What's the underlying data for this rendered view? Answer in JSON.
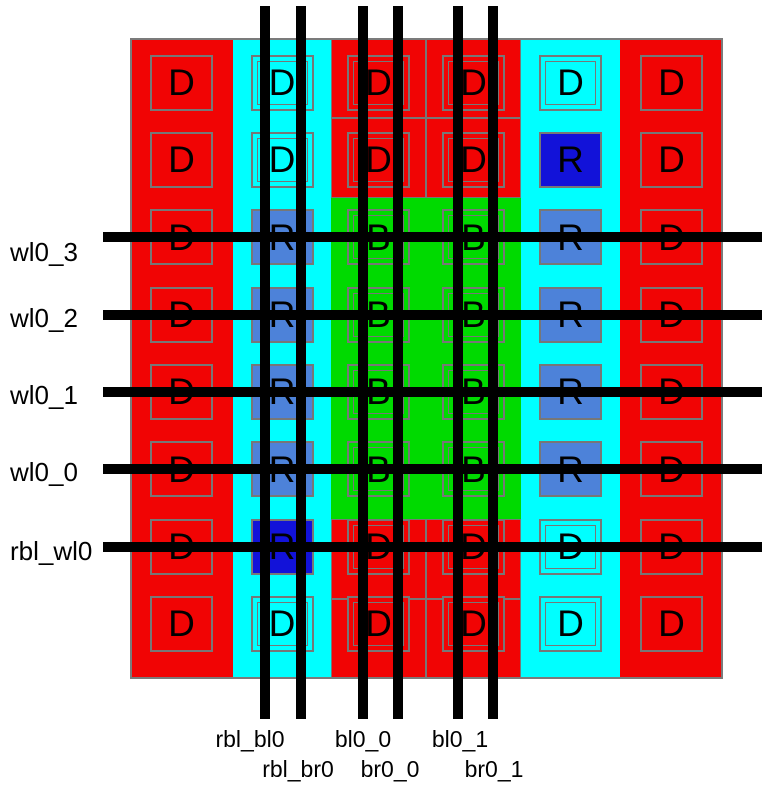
{
  "diagram": {
    "kind": "memory-array-layout",
    "grid": {
      "columns": 6,
      "rows": 8
    },
    "cell_letters": [
      [
        "D",
        "D",
        "D",
        "D",
        "D",
        "D"
      ],
      [
        "D",
        "D",
        "D",
        "D",
        "R",
        "D"
      ],
      [
        "D",
        "R",
        "B",
        "B",
        "R",
        "D"
      ],
      [
        "D",
        "R",
        "B",
        "B",
        "R",
        "D"
      ],
      [
        "D",
        "R",
        "B",
        "B",
        "R",
        "D"
      ],
      [
        "D",
        "R",
        "B",
        "B",
        "R",
        "D"
      ],
      [
        "D",
        "R",
        "D",
        "D",
        "D",
        "D"
      ],
      [
        "D",
        "D",
        "D",
        "D",
        "D",
        "D"
      ]
    ],
    "cell_fills": [
      [
        "red",
        "cyan",
        "red",
        "red",
        "cyan",
        "red"
      ],
      [
        "red",
        "cyan",
        "red",
        "red",
        "darkblue",
        "red"
      ],
      [
        "red",
        "medblue",
        "green",
        "green",
        "medblue",
        "red"
      ],
      [
        "red",
        "medblue",
        "green",
        "green",
        "medblue",
        "red"
      ],
      [
        "red",
        "medblue",
        "green",
        "green",
        "medblue",
        "red"
      ],
      [
        "red",
        "medblue",
        "green",
        "green",
        "medblue",
        "red"
      ],
      [
        "red",
        "darkblue",
        "red",
        "red",
        "cyan",
        "red"
      ],
      [
        "red",
        "cyan",
        "red",
        "red",
        "cyan",
        "red"
      ]
    ],
    "wordlines": [
      {
        "label": "wl0_3",
        "row": 2
      },
      {
        "label": "wl0_2",
        "row": 3
      },
      {
        "label": "wl0_1",
        "row": 4
      },
      {
        "label": "wl0_0",
        "row": 5
      },
      {
        "label": "rbl_wl0",
        "row": 6
      }
    ],
    "bitlines": [
      {
        "label": "rbl_bl0",
        "column": 1,
        "label_line": 1
      },
      {
        "label": "rbl_br0",
        "column": 1,
        "label_line": 2
      },
      {
        "label": "bl0_0",
        "column": 2,
        "label_line": 1
      },
      {
        "label": "br0_0",
        "column": 2,
        "label_line": 2
      },
      {
        "label": "bl0_1",
        "column": 3,
        "label_line": 1
      },
      {
        "label": "br0_1",
        "column": 3,
        "label_line": 2
      }
    ],
    "colors": {
      "red": "#f10404",
      "cyan": "#00ffff",
      "green": "#00da00",
      "medblue": "#4d82d9",
      "darkblue": "#1212d9",
      "outline": "#777777",
      "array_outline": "#7b7b7b",
      "line": "#000000",
      "text": "#000000",
      "background": "#ffffff"
    }
  }
}
